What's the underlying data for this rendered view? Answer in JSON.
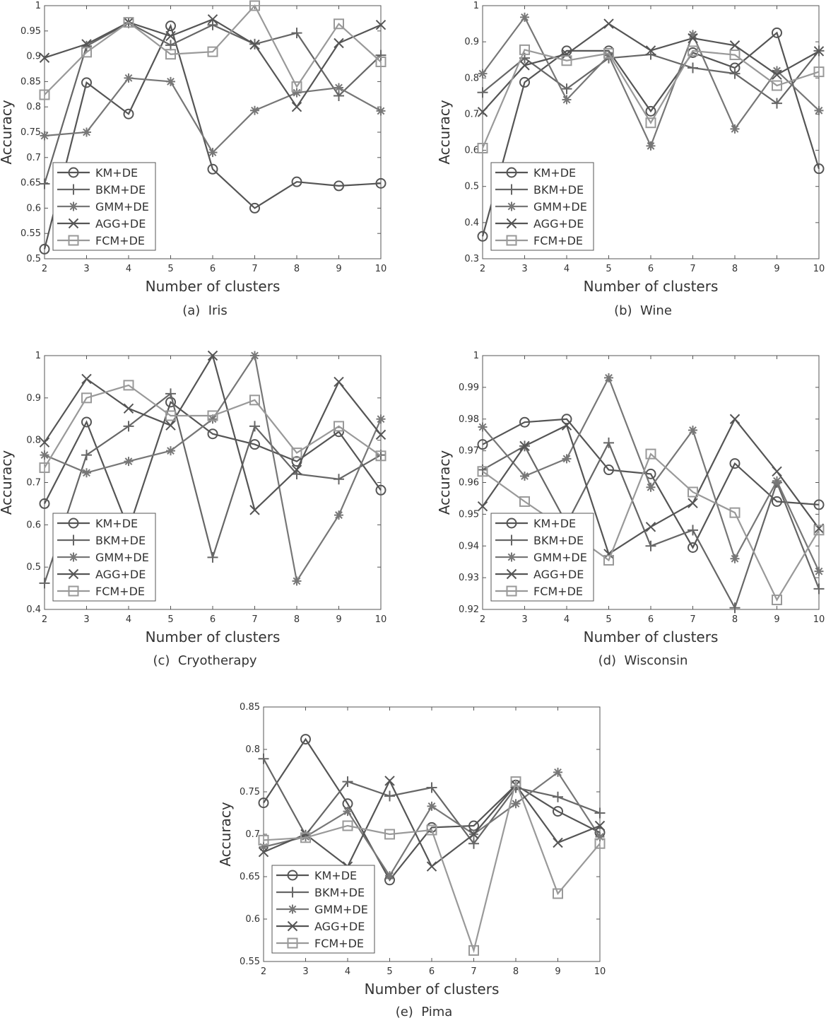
{
  "figure": {
    "xlabel": "Number of clusters",
    "ylabel": "Accuracy",
    "series_names": [
      "KM+DE",
      "BKM+DE",
      "GMM+DE",
      "AGG+DE",
      "FCM+DE"
    ],
    "series_markers": [
      "circle",
      "plus",
      "asterisk",
      "cross",
      "square"
    ],
    "series_colors": [
      "#555555",
      "#666666",
      "#777777",
      "#555555",
      "#999999"
    ]
  },
  "chart_data": [
    {
      "type": "line",
      "caption": "(a)  Iris",
      "xlabel": "Number of clusters",
      "ylabel": "Accuracy",
      "x": [
        2,
        3,
        4,
        5,
        6,
        7,
        8,
        9,
        10
      ],
      "xlim": [
        2,
        10
      ],
      "ylim": [
        0.5,
        1
      ],
      "yticks": [
        "0.5",
        "0.55",
        "0.6",
        "0.65",
        "0.7",
        "0.75",
        "0.8",
        "0.85",
        "0.9",
        "0.95",
        "1"
      ],
      "legend": "bottom-left",
      "series": [
        {
          "name": "KM+DE",
          "values": [
            0.519,
            0.848,
            0.786,
            0.96,
            0.677,
            0.6,
            0.652,
            0.644,
            0.649
          ]
        },
        {
          "name": "BKM+DE",
          "values": [
            0.648,
            0.92,
            0.966,
            0.922,
            0.962,
            0.924,
            0.946,
            0.822,
            0.902
          ]
        },
        {
          "name": "GMM+DE",
          "values": [
            0.743,
            0.75,
            0.857,
            0.85,
            0.71,
            0.793,
            0.828,
            0.838,
            0.792
          ]
        },
        {
          "name": "AGG+DE",
          "values": [
            0.897,
            0.924,
            0.967,
            0.94,
            0.973,
            0.923,
            0.8,
            0.926,
            0.962
          ]
        },
        {
          "name": "FCM+DE",
          "values": [
            0.824,
            0.908,
            0.967,
            0.904,
            0.909,
            1.0,
            0.84,
            0.964,
            0.889
          ]
        }
      ]
    },
    {
      "type": "line",
      "caption": "(b)  Wine",
      "xlabel": "Number of clusters",
      "ylabel": "Accuracy",
      "x": [
        2,
        3,
        4,
        5,
        6,
        7,
        8,
        9,
        10
      ],
      "xlim": [
        2,
        10
      ],
      "ylim": [
        0.3,
        1
      ],
      "yticks": [
        "0.3",
        "0.4",
        "0.5",
        "0.6",
        "0.7",
        "0.8",
        "0.9",
        "1"
      ],
      "legend": "bottom-left",
      "series": [
        {
          "name": "KM+DE",
          "values": [
            0.362,
            0.788,
            0.875,
            0.875,
            0.708,
            0.87,
            0.828,
            0.925,
            0.549
          ]
        },
        {
          "name": "BKM+DE",
          "values": [
            0.76,
            0.855,
            0.77,
            0.855,
            0.865,
            0.828,
            0.812,
            0.73,
            0.875
          ]
        },
        {
          "name": "GMM+DE",
          "values": [
            0.812,
            0.968,
            0.74,
            0.862,
            0.612,
            0.92,
            0.659,
            0.82,
            0.71
          ]
        },
        {
          "name": "AGG+DE",
          "values": [
            0.706,
            0.835,
            0.866,
            0.95,
            0.876,
            0.91,
            0.89,
            0.809,
            0.874
          ]
        },
        {
          "name": "FCM+DE",
          "values": [
            0.606,
            0.878,
            0.848,
            0.868,
            0.676,
            0.875,
            0.864,
            0.779,
            0.817
          ]
        }
      ]
    },
    {
      "type": "line",
      "caption": "(c)  Cryotherapy",
      "xlabel": "Number of clusters",
      "ylabel": "Accuracy",
      "x": [
        2,
        3,
        4,
        5,
        6,
        7,
        8,
        9,
        10
      ],
      "xlim": [
        2,
        10
      ],
      "ylim": [
        0.4,
        1
      ],
      "yticks": [
        "0.4",
        "0.5",
        "0.6",
        "0.7",
        "0.8",
        "0.9",
        "1"
      ],
      "legend": "bottom-left",
      "series": [
        {
          "name": "KM+DE",
          "values": [
            0.65,
            0.843,
            0.59,
            0.89,
            0.815,
            0.79,
            0.75,
            0.82,
            0.682
          ]
        },
        {
          "name": "BKM+DE",
          "values": [
            0.462,
            0.765,
            0.833,
            0.91,
            0.523,
            0.833,
            0.72,
            0.708,
            0.765
          ]
        },
        {
          "name": "GMM+DE",
          "values": [
            0.765,
            0.723,
            0.75,
            0.775,
            0.85,
            1.0,
            0.467,
            0.623,
            0.85
          ]
        },
        {
          "name": "AGG+DE",
          "values": [
            0.795,
            0.945,
            0.875,
            0.835,
            1.0,
            0.635,
            0.73,
            0.938,
            0.813
          ]
        },
        {
          "name": "FCM+DE",
          "values": [
            0.735,
            0.9,
            0.93,
            0.858,
            0.858,
            0.895,
            0.77,
            0.833,
            0.763
          ]
        }
      ]
    },
    {
      "type": "line",
      "caption": "(d)  Wisconsin",
      "xlabel": "Number of clusters",
      "ylabel": "Accuracy",
      "x": [
        2,
        3,
        4,
        5,
        6,
        7,
        8,
        9,
        10
      ],
      "xlim": [
        2,
        10
      ],
      "ylim": [
        0.92,
        1
      ],
      "yticks": [
        "0.92",
        "0.93",
        "0.94",
        "0.95",
        "0.96",
        "0.97",
        "0.98",
        "0.99",
        "1"
      ],
      "legend": "bottom-left",
      "series": [
        {
          "name": "KM+DE",
          "values": [
            0.972,
            0.979,
            0.98,
            0.964,
            0.9627,
            0.9395,
            0.966,
            0.954,
            0.953
          ]
        },
        {
          "name": "BKM+DE",
          "values": [
            0.964,
            0.9715,
            0.947,
            0.9725,
            0.94,
            0.945,
            0.9205,
            0.96,
            0.9265
          ]
        },
        {
          "name": "GMM+DE",
          "values": [
            0.9775,
            0.962,
            0.9675,
            0.993,
            0.9585,
            0.9765,
            0.936,
            0.9605,
            0.932
          ]
        },
        {
          "name": "AGG+DE",
          "values": [
            0.9525,
            0.9715,
            0.978,
            0.9375,
            0.946,
            0.9535,
            0.98,
            0.9635,
            0.9455
          ]
        },
        {
          "name": "FCM+DE",
          "values": [
            0.9635,
            0.954,
            0.945,
            0.9355,
            0.969,
            0.957,
            0.9505,
            0.923,
            0.945
          ]
        }
      ]
    },
    {
      "type": "line",
      "caption": "(e)  Pima",
      "xlabel": "Number of clusters",
      "ylabel": "Accuracy",
      "x": [
        2,
        3,
        4,
        5,
        6,
        7,
        8,
        9,
        10
      ],
      "xlim": [
        2,
        10
      ],
      "ylim": [
        0.55,
        0.85
      ],
      "yticks": [
        "0.55",
        "0.6",
        "0.65",
        "0.7",
        "0.75",
        "0.8",
        "0.85"
      ],
      "legend": "bottom-left",
      "series": [
        {
          "name": "KM+DE",
          "values": [
            0.737,
            0.812,
            0.736,
            0.646,
            0.708,
            0.71,
            0.758,
            0.727,
            0.702
          ]
        },
        {
          "name": "BKM+DE",
          "values": [
            0.789,
            0.699,
            0.762,
            0.745,
            0.755,
            0.689,
            0.755,
            0.744,
            0.725
          ]
        },
        {
          "name": "GMM+DE",
          "values": [
            0.685,
            0.697,
            0.727,
            0.651,
            0.733,
            0.7,
            0.736,
            0.773,
            0.697
          ]
        },
        {
          "name": "AGG+DE",
          "values": [
            0.679,
            0.7,
            0.662,
            0.763,
            0.662,
            0.7,
            0.758,
            0.69,
            0.71
          ]
        },
        {
          "name": "FCM+DE",
          "values": [
            0.693,
            0.696,
            0.71,
            0.7,
            0.705,
            0.563,
            0.762,
            0.63,
            0.689
          ]
        }
      ]
    }
  ]
}
